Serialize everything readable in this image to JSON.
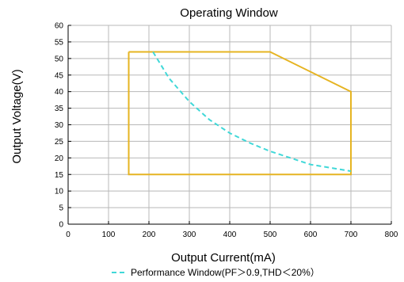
{
  "chart_data": {
    "type": "line",
    "title": "Operating Window",
    "xlabel": "Output Current(mA)",
    "ylabel": "Output Voltage(V)",
    "xlim": [
      0,
      800
    ],
    "ylim": [
      0,
      60
    ],
    "xticks": [
      0,
      100,
      200,
      300,
      400,
      500,
      600,
      700,
      800
    ],
    "yticks": [
      0,
      5,
      10,
      15,
      20,
      25,
      30,
      35,
      40,
      45,
      50,
      55,
      60
    ],
    "grid": true,
    "legend_position": "bottom",
    "series": [
      {
        "style": "solid",
        "color": "#e6b422",
        "x": [
          150,
          500,
          700,
          700,
          150,
          150
        ],
        "y": [
          52,
          52,
          40,
          15,
          15,
          52
        ]
      },
      {
        "name": "Performance Window(PF＞0.9,THD＜20%）",
        "style": "dashed",
        "color": "#40d8d8",
        "x": [
          210,
          250,
          300,
          350,
          400,
          450,
          500,
          550,
          600,
          650,
          700
        ],
        "y": [
          52,
          44,
          37,
          31.5,
          27.5,
          24.5,
          22,
          20,
          18,
          17,
          16
        ]
      }
    ]
  }
}
